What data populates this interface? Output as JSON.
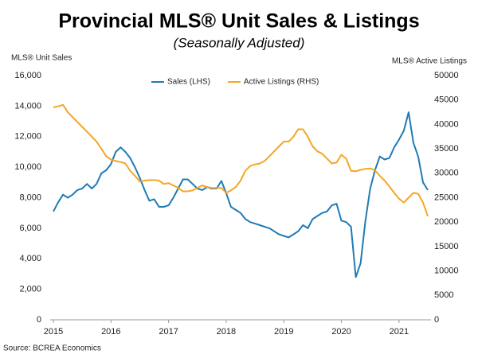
{
  "chart_data": {
    "type": "line",
    "title": "Provincial MLS® Unit Sales & Listings",
    "subtitle": "(Seasonally Adjusted)",
    "y_label": "MLS® Unit Sales",
    "y2_label": "MLS® Active Listings",
    "source": "Source: BCREA Economics",
    "categories": [
      "2015",
      null,
      null,
      null,
      null,
      null,
      null,
      null,
      null,
      null,
      null,
      null,
      "2016",
      null,
      null,
      null,
      null,
      null,
      null,
      null,
      null,
      null,
      null,
      null,
      "2017",
      null,
      null,
      null,
      null,
      null,
      null,
      null,
      null,
      null,
      null,
      null,
      "2018",
      null,
      null,
      null,
      null,
      null,
      null,
      null,
      null,
      null,
      null,
      null,
      "2019",
      null,
      null,
      null,
      null,
      null,
      null,
      null,
      null,
      null,
      null,
      null,
      "2020",
      null,
      null,
      null,
      null,
      null,
      null,
      null,
      null,
      null,
      null,
      null,
      "2021",
      null,
      null,
      null,
      null,
      null,
      null
    ],
    "series": [
      {
        "name": "Sales (LHS)",
        "color": "#1f7bb6",
        "axis": "y",
        "values": [
          7100,
          7700,
          8200,
          8000,
          8200,
          8500,
          8600,
          8900,
          8600,
          8900,
          9600,
          9800,
          10200,
          11000,
          11300,
          11000,
          10600,
          10000,
          9300,
          8500,
          7800,
          7900,
          7400,
          7400,
          7500,
          8000,
          8600,
          9200,
          9200,
          8900,
          8600,
          8500,
          8700,
          8600,
          8600,
          9100,
          8300,
          7400,
          7200,
          7000,
          6600,
          6400,
          6300,
          6200,
          6100,
          6000,
          5800,
          5600,
          5500,
          5400,
          5600,
          5800,
          6200,
          6000,
          6600,
          6800,
          7000,
          7100,
          7500,
          7600,
          6500,
          6400,
          6100,
          2800,
          3700,
          6500,
          8600,
          9800,
          10700,
          10500,
          10600,
          11300,
          11800,
          12400,
          13600,
          11600,
          10700,
          9000,
          8500
        ]
      },
      {
        "name": "Active Listings (RHS)",
        "color": "#f5a623",
        "axis": "y2",
        "values": [
          43500,
          43700,
          44000,
          42500,
          41500,
          40500,
          39500,
          38500,
          37500,
          36500,
          35000,
          33500,
          32800,
          32500,
          32300,
          32000,
          30500,
          29500,
          28300,
          28500,
          28600,
          28600,
          28500,
          27800,
          28000,
          27500,
          27000,
          26300,
          26300,
          26500,
          27000,
          27500,
          27200,
          27000,
          27000,
          27000,
          26000,
          26500,
          27200,
          28500,
          30500,
          31500,
          31800,
          32000,
          32500,
          33500,
          34500,
          35500,
          36500,
          36500,
          37500,
          39000,
          39000,
          37500,
          35500,
          34500,
          34000,
          33000,
          32000,
          32200,
          33800,
          33000,
          30500,
          30400,
          30700,
          30900,
          31000,
          30600,
          29500,
          28500,
          27300,
          26000,
          24800,
          24000,
          25000,
          26000,
          25800,
          24000,
          21200
        ]
      }
    ],
    "ylim": [
      0,
      16000
    ],
    "yticks": [
      0,
      {
        "value": 2000,
        "label": "2,000"
      },
      {
        "value": 4000,
        "label": "4,000"
      },
      {
        "value": 6000,
        "label": "6,000"
      },
      {
        "value": 8000,
        "label": "8,000"
      },
      {
        "value": 10000,
        "label": "10,000"
      },
      {
        "value": 12000,
        "label": "12,000"
      },
      {
        "value": 14000,
        "label": "14,000"
      },
      {
        "value": 16000,
        "label": "16,000"
      }
    ],
    "y2lim": [
      0,
      50000
    ],
    "y2ticks": [
      0,
      5000,
      10000,
      15000,
      20000,
      25000,
      30000,
      35000,
      40000,
      45000,
      50000
    ],
    "grid": false,
    "legend": "top"
  }
}
